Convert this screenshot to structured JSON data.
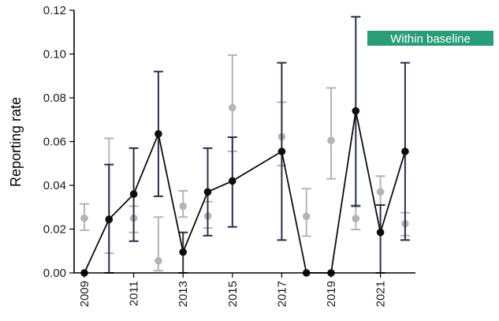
{
  "chart_data": {
    "type": "line",
    "xlabel": "",
    "ylabel": "Reporting rate",
    "xlim": [
      2008.5,
      2022.5
    ],
    "ylim": [
      0,
      0.12
    ],
    "x_ticks": [
      2009,
      2011,
      2013,
      2015,
      2017,
      2019,
      2021
    ],
    "y_ticks": [
      0.0,
      0.02,
      0.04,
      0.06,
      0.08,
      0.1,
      0.12
    ],
    "grid": false,
    "annotation": {
      "text": "Within baseline",
      "color": "#2a9d78"
    },
    "colors": {
      "gray_series": "#b5b5b5",
      "black_series": "#0d0d0d",
      "black_errorbar": "#26304a",
      "axis": "#000000"
    },
    "series": [
      {
        "style": "gray",
        "points": [
          {
            "x": 2009,
            "y": 0.025,
            "lo": 0.0195,
            "hi": 0.0315
          },
          {
            "x": 2010,
            "y": 0.024,
            "lo": 0.009,
            "hi": 0.0615
          },
          {
            "x": 2011,
            "y": 0.025,
            "lo": 0.0185,
            "hi": 0.0305
          },
          {
            "x": 2012,
            "y": 0.0055,
            "lo": 0.001,
            "hi": 0.0255
          },
          {
            "x": 2013,
            "y": 0.0305,
            "lo": 0.0255,
            "hi": 0.0375
          },
          {
            "x": 2014,
            "y": 0.026,
            "lo": 0.0205,
            "hi": 0.0325
          },
          {
            "x": 2015,
            "y": 0.0755,
            "lo": 0.0555,
            "hi": 0.0995
          },
          {
            "x": 2017,
            "y": 0.0622,
            "lo": 0.049,
            "hi": 0.078
          },
          {
            "x": 2018,
            "y": 0.0258,
            "lo": 0.0168,
            "hi": 0.0385
          },
          {
            "x": 2019,
            "y": 0.0605,
            "lo": 0.043,
            "hi": 0.0845
          },
          {
            "x": 2020,
            "y": 0.0248,
            "lo": 0.0198,
            "hi": 0.031
          },
          {
            "x": 2021,
            "y": 0.037,
            "lo": 0.031,
            "hi": 0.0442
          },
          {
            "x": 2022,
            "y": 0.0225,
            "lo": 0.017,
            "hi": 0.0275
          }
        ]
      },
      {
        "style": "black",
        "points": [
          {
            "x": 2009,
            "y": 0.0,
            "lo": 0.0,
            "hi": 0.0
          },
          {
            "x": 2010,
            "y": 0.0245,
            "lo": 0.0,
            "hi": 0.0495
          },
          {
            "x": 2011,
            "y": 0.036,
            "lo": 0.0145,
            "hi": 0.057
          },
          {
            "x": 2012,
            "y": 0.0635,
            "lo": 0.035,
            "hi": 0.092
          },
          {
            "x": 2013,
            "y": 0.0095,
            "lo": 0.0,
            "hi": 0.0185
          },
          {
            "x": 2014,
            "y": 0.037,
            "lo": 0.017,
            "hi": 0.057
          },
          {
            "x": 2015,
            "y": 0.042,
            "lo": 0.021,
            "hi": 0.062
          },
          {
            "x": 2017,
            "y": 0.0555,
            "lo": 0.015,
            "hi": 0.096
          },
          {
            "x": 2018,
            "y": 0.0,
            "lo": 0.0,
            "hi": 0.0
          },
          {
            "x": 2019,
            "y": 0.0,
            "lo": 0.0,
            "hi": 0.0
          },
          {
            "x": 2020,
            "y": 0.074,
            "lo": 0.0305,
            "hi": 0.117
          },
          {
            "x": 2021,
            "y": 0.0185,
            "lo": 0.0,
            "hi": 0.031
          },
          {
            "x": 2022,
            "y": 0.0555,
            "lo": 0.015,
            "hi": 0.096
          }
        ]
      }
    ]
  }
}
